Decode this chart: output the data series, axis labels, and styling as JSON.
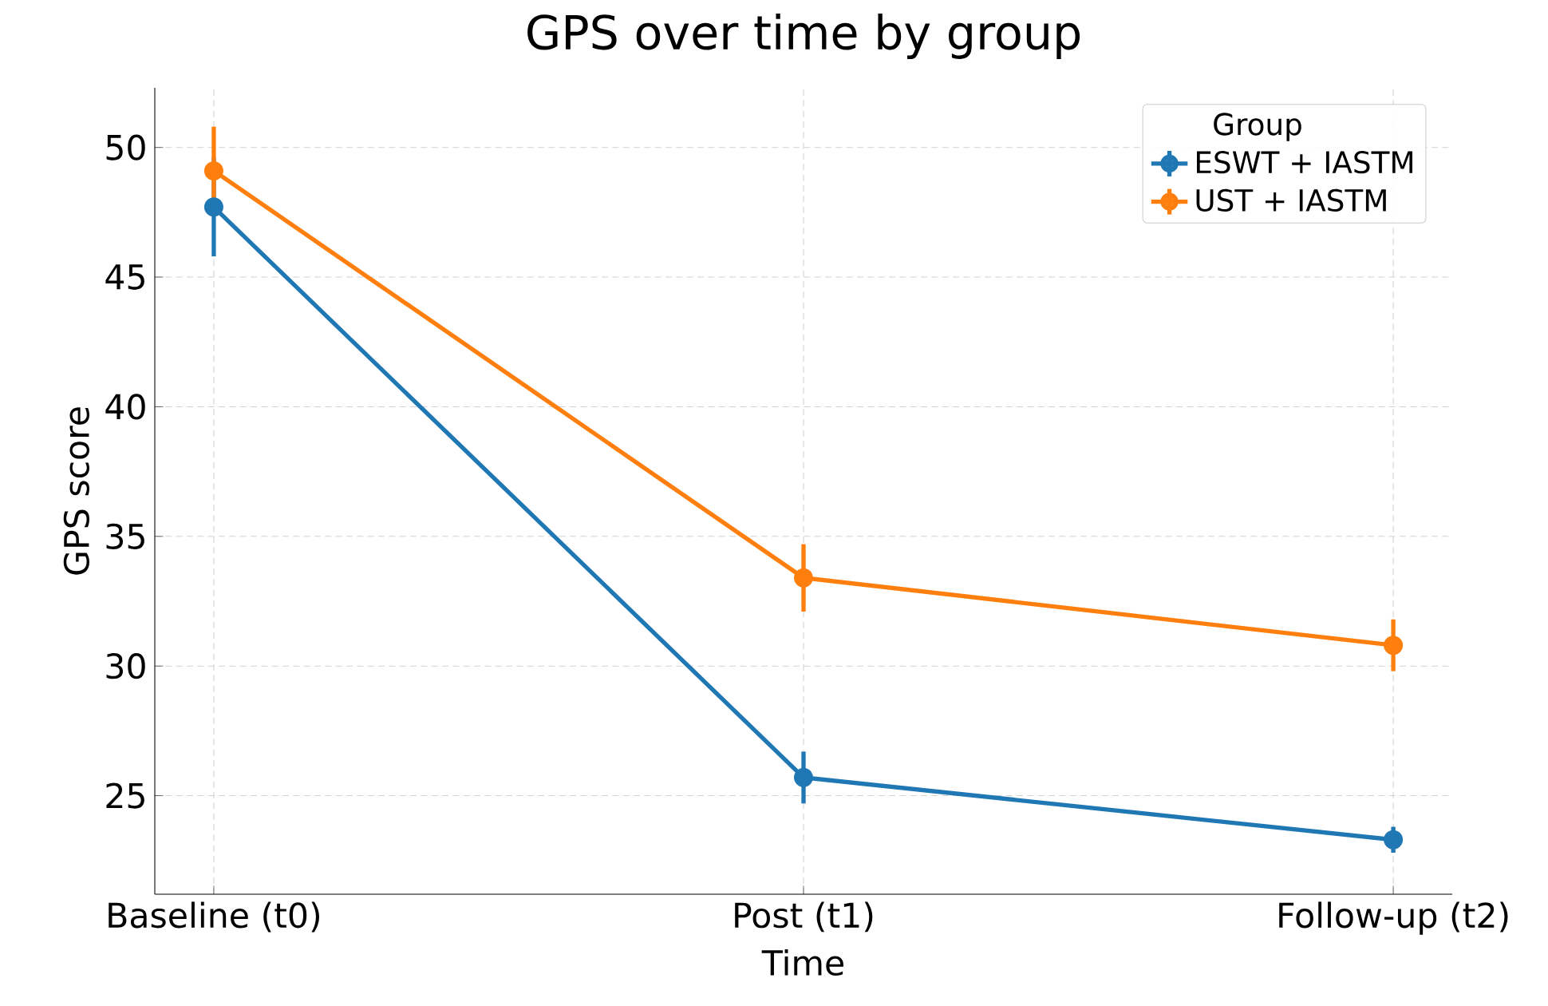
{
  "chart_data": {
    "type": "line",
    "title": "GPS over time by group",
    "xlabel": "Time",
    "ylabel": "GPS score",
    "legend_title": "Group",
    "categories": [
      "Baseline (t0)",
      "Post (t1)",
      "Follow-up (t2)"
    ],
    "series": [
      {
        "name": "ESWT + IASTM",
        "color": "#1f77b4",
        "values": [
          47.7,
          25.7,
          23.3
        ],
        "errors": [
          1.9,
          1.0,
          0.5
        ]
      },
      {
        "name": "UST + IASTM",
        "color": "#ff7f0e",
        "values": [
          49.1,
          33.4,
          30.8
        ],
        "errors": [
          1.7,
          1.3,
          1.0
        ]
      }
    ],
    "ylim": [
      21.2,
      52.3
    ],
    "yticks": [
      25,
      30,
      35,
      40,
      45,
      50
    ],
    "grid": true,
    "legend": "top right",
    "marker": "circle",
    "line_style": "solid"
  }
}
